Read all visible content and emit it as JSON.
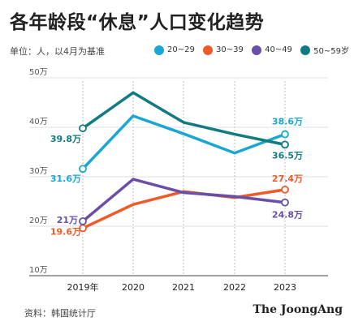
{
  "title": "各年龄段“休息”人口变化趋势",
  "unit_note": "单位：人，以4月为基准",
  "source": "资料：韩国统计厅",
  "logo": "The JoongAng",
  "chart_data": {
    "type": "line",
    "x": [
      "2019年",
      "2020",
      "2021",
      "2022",
      "2023"
    ],
    "ylim": [
      10,
      50
    ],
    "yticks": [
      10,
      20,
      30,
      40,
      50
    ],
    "ytick_labels": [
      "10万",
      "20万",
      "30万",
      "40万",
      "50万"
    ],
    "grid": true,
    "legend_position": "top-right",
    "series": [
      {
        "name": "20~29",
        "color": "#1aa7d4",
        "values": [
          31.6,
          42.3,
          38.7,
          34.8,
          38.6
        ],
        "start_label": "31.6万",
        "end_label": "38.6万"
      },
      {
        "name": "30~39",
        "color": "#f05a28",
        "values": [
          19.6,
          24.4,
          27.0,
          25.8,
          27.4
        ],
        "start_label": "19.6万",
        "end_label": "27.4万"
      },
      {
        "name": "40~49",
        "color": "#6a4fa8",
        "values": [
          21.0,
          29.5,
          26.8,
          26.0,
          24.8
        ],
        "start_label": "21万",
        "end_label": "24.8万"
      },
      {
        "name": "50~59岁",
        "color": "#117c80",
        "values": [
          39.8,
          47.0,
          41.0,
          38.6,
          36.5
        ],
        "start_label": "39.8万",
        "end_label": "36.5万"
      }
    ]
  }
}
